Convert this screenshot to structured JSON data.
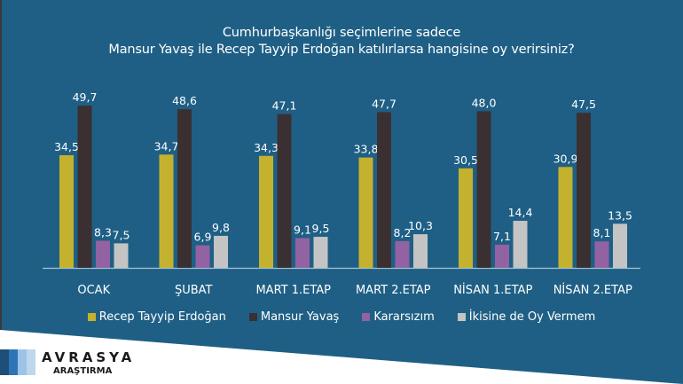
{
  "colors": {
    "background": "#1f5f85",
    "left_strip": "#3a3a3a",
    "baseline": "#a9c3d3",
    "text": "#ffffff"
  },
  "chart_data": {
    "type": "bar",
    "title": "Cumhurbaşkanlığı seçimlerine sadece",
    "subtitle": "Mansur Yavaş ile Recep Tayyip Erdoğan katılırlarsa hangisine oy verirsiniz?",
    "xlabel": "",
    "ylabel": "",
    "ylim": [
      0,
      55
    ],
    "grid": false,
    "legend_position": "bottom",
    "categories": [
      "OCAK",
      "ŞUBAT",
      "MART 1.ETAP",
      "MART 2.ETAP",
      "NİSAN 1.ETAP",
      "NİSAN 2.ETAP"
    ],
    "series": [
      {
        "name": "Recep Tayyip Erdoğan",
        "color": "#c4b22f",
        "values": [
          34.5,
          34.7,
          34.3,
          33.8,
          30.5,
          30.9
        ],
        "labels": [
          "34,5",
          "34,7",
          "34,3",
          "33,8",
          "30,5",
          "30,9"
        ]
      },
      {
        "name": "Mansur Yavaş",
        "color": "#3a3032",
        "values": [
          49.7,
          48.6,
          47.1,
          47.7,
          48.0,
          47.5
        ],
        "labels": [
          "49,7",
          "48,6",
          "47,1",
          "47,7",
          "48,0",
          "47,5"
        ]
      },
      {
        "name": "Kararsızım",
        "color": "#9262a2",
        "values": [
          8.3,
          6.9,
          9.1,
          8.2,
          7.1,
          8.1
        ],
        "labels": [
          "8,3",
          "6,9",
          "9,1",
          "8,2",
          "7,1",
          "8,1"
        ]
      },
      {
        "name": "İkisine de Oy Vermem",
        "color": "#c4c4c4",
        "values": [
          7.5,
          9.8,
          9.5,
          10.3,
          14.4,
          13.5
        ],
        "labels": [
          "7,5",
          "9,8",
          "9,5",
          "10,3",
          "14,4",
          "13,5"
        ]
      }
    ]
  },
  "logo": {
    "name": "AVRASYA",
    "sub": "ARAŞTIRMA",
    "stripe_colors": [
      "#1f4e79",
      "#2e75b6",
      "#9dc3e6",
      "#bdd7ee"
    ]
  }
}
